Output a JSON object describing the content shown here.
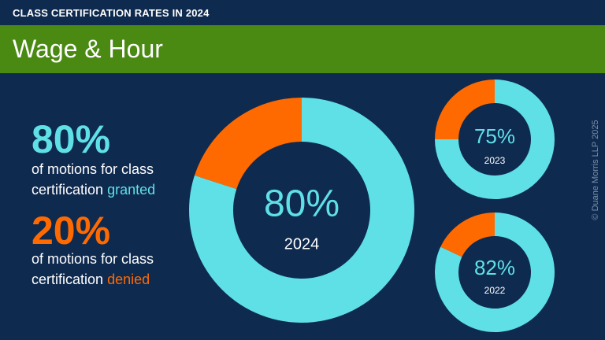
{
  "header": {
    "supertitle": "CLASS CERTIFICATION RATES IN 2024",
    "title": "Wage & Hour"
  },
  "summary": {
    "granted_pct": "80%",
    "granted_line1": "of motions for class",
    "granted_line2": "certification",
    "granted_word": "granted",
    "denied_pct": "20%",
    "denied_line1": "of motions for class",
    "denied_line2": "certification",
    "denied_word": "denied"
  },
  "credit": "© Duane Morris LLP 2025",
  "colors": {
    "background": "#0f2a4f",
    "banner": "#4a8a13",
    "granted": "#5fe0e6",
    "denied": "#ff6a00",
    "text": "#ffffff"
  },
  "chart_data": [
    {
      "type": "pie",
      "title": "2024",
      "center_label": "80%",
      "categories": [
        "granted",
        "denied"
      ],
      "values": [
        80,
        20
      ]
    },
    {
      "type": "pie",
      "title": "2023",
      "center_label": "75%",
      "categories": [
        "granted",
        "denied"
      ],
      "values": [
        75,
        25
      ]
    },
    {
      "type": "pie",
      "title": "2022",
      "center_label": "82%",
      "categories": [
        "granted",
        "denied"
      ],
      "values": [
        82,
        18
      ]
    }
  ]
}
